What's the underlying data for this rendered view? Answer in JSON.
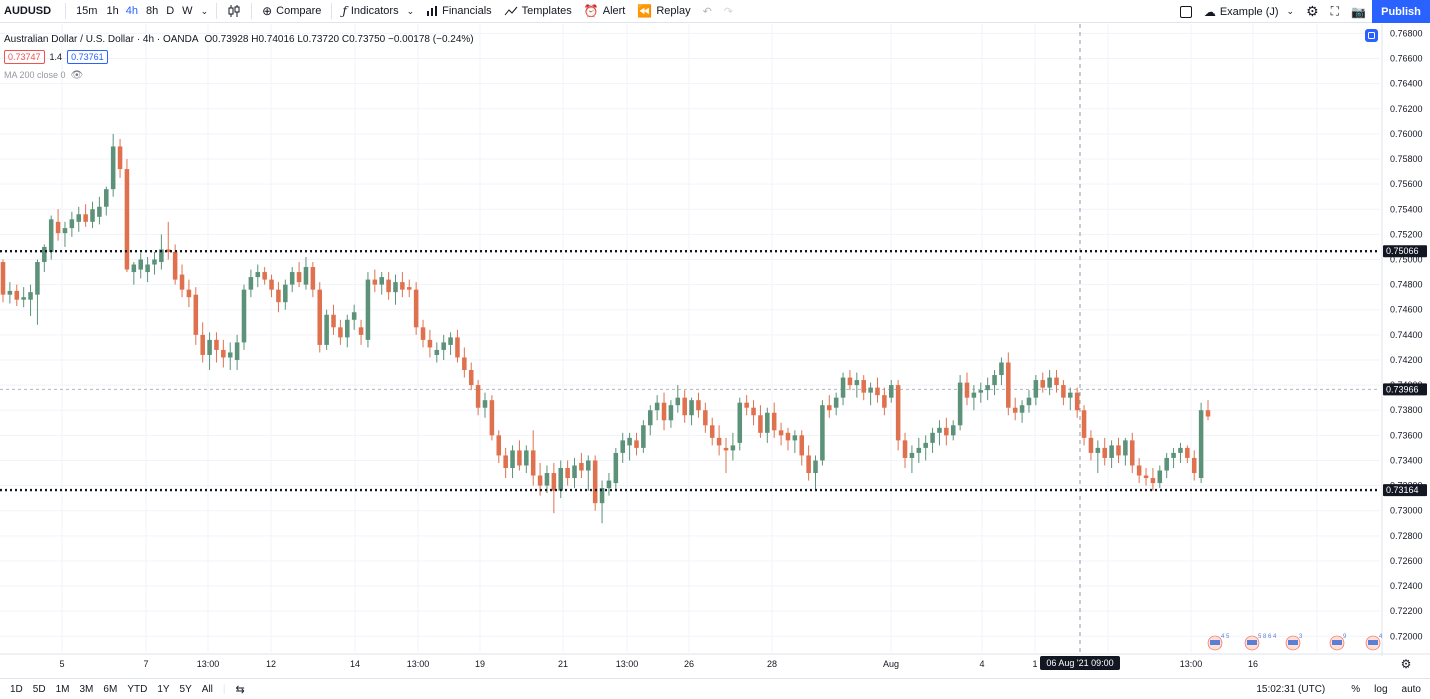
{
  "toolbar": {
    "symbol": "AUDUSD",
    "intervals": [
      "15m",
      "1h",
      "4h",
      "8h",
      "D",
      "W"
    ],
    "active_interval": "4h",
    "compare": "Compare",
    "indicators": "Indicators",
    "financials": "Financials",
    "templates": "Templates",
    "alert": "Alert",
    "replay": "Replay",
    "layout_name": "Example (J)",
    "publish": "Publish"
  },
  "legend": {
    "title": "Australian Dollar / U.S. Dollar · 4h · OANDA",
    "ohlc": "O0.73928 H0.74016 L0.73720 C0.73750 −0.00178 (−0.24%)",
    "bid": "0.73747",
    "spread": "1.4",
    "ask": "0.73761",
    "ma": "MA 200 close 0"
  },
  "colors": {
    "up": "#5b9279",
    "down": "#e0714e",
    "accent": "#2962ff"
  },
  "chart_data": {
    "type": "candlestick",
    "ylim": [
      0.71875,
      0.76875
    ],
    "y_ticks": [
      "0.76800",
      "0.76600",
      "0.76400",
      "0.76200",
      "0.76000",
      "0.75800",
      "0.75600",
      "0.75400",
      "0.75200",
      "0.75000",
      "0.74800",
      "0.74600",
      "0.74400",
      "0.74200",
      "0.74000",
      "0.73800",
      "0.73600",
      "0.73400",
      "0.73200",
      "0.73000",
      "0.72800",
      "0.72600",
      "0.72400",
      "0.72200",
      "0.72000"
    ],
    "x_ticks": [
      "5",
      "7",
      "13:00",
      "12",
      "14",
      "13:00",
      "19",
      "21",
      "13:00",
      "26",
      "28",
      "Aug",
      "4",
      "1",
      "11",
      "13:00",
      "16"
    ],
    "horizontal_lines": [
      {
        "label": "0.75066",
        "value": 0.75066,
        "style": "dotted"
      },
      {
        "label": "0.73164",
        "value": 0.73164,
        "style": "dotted"
      }
    ],
    "last_price_label": "0.73966",
    "last_price": 0.73966,
    "crosshair_label": "06 Aug '21   09:00",
    "candles": [
      [
        0.7498,
        0.75,
        0.7466,
        0.7472
      ],
      [
        0.7472,
        0.7482,
        0.7465,
        0.7475
      ],
      [
        0.7475,
        0.748,
        0.7463,
        0.7468
      ],
      [
        0.7468,
        0.7478,
        0.7462,
        0.747
      ],
      [
        0.7468,
        0.748,
        0.7455,
        0.7474
      ],
      [
        0.7472,
        0.75,
        0.7448,
        0.7498
      ],
      [
        0.7498,
        0.7512,
        0.749,
        0.751
      ],
      [
        0.7506,
        0.7535,
        0.75,
        0.7532
      ],
      [
        0.753,
        0.754,
        0.7515,
        0.7521
      ],
      [
        0.7521,
        0.753,
        0.751,
        0.7525
      ],
      [
        0.7525,
        0.7538,
        0.7518,
        0.7532
      ],
      [
        0.753,
        0.7542,
        0.7522,
        0.7536
      ],
      [
        0.7536,
        0.7544,
        0.7526,
        0.753
      ],
      [
        0.753,
        0.7546,
        0.7525,
        0.754
      ],
      [
        0.7534,
        0.755,
        0.7528,
        0.7542
      ],
      [
        0.7542,
        0.7558,
        0.7535,
        0.7556
      ],
      [
        0.7556,
        0.76,
        0.755,
        0.759
      ],
      [
        0.759,
        0.7596,
        0.7565,
        0.7572
      ],
      [
        0.7572,
        0.758,
        0.749,
        0.7492
      ],
      [
        0.749,
        0.7498,
        0.748,
        0.7496
      ],
      [
        0.7492,
        0.7505,
        0.7485,
        0.75
      ],
      [
        0.749,
        0.7502,
        0.7482,
        0.7496
      ],
      [
        0.7496,
        0.7506,
        0.7488,
        0.75
      ],
      [
        0.7498,
        0.752,
        0.7492,
        0.7508
      ],
      [
        0.7508,
        0.753,
        0.75,
        0.7506
      ],
      [
        0.7506,
        0.7512,
        0.748,
        0.7484
      ],
      [
        0.7488,
        0.7496,
        0.747,
        0.7476
      ],
      [
        0.7476,
        0.7484,
        0.7462,
        0.747
      ],
      [
        0.7472,
        0.7478,
        0.7432,
        0.744
      ],
      [
        0.744,
        0.745,
        0.7418,
        0.7424
      ],
      [
        0.7424,
        0.7442,
        0.7412,
        0.7436
      ],
      [
        0.7436,
        0.7442,
        0.7418,
        0.7428
      ],
      [
        0.7428,
        0.7436,
        0.7414,
        0.7422
      ],
      [
        0.7422,
        0.7434,
        0.7412,
        0.7426
      ],
      [
        0.742,
        0.744,
        0.7412,
        0.7434
      ],
      [
        0.7434,
        0.748,
        0.7428,
        0.7476
      ],
      [
        0.7476,
        0.7492,
        0.747,
        0.7486
      ],
      [
        0.7486,
        0.7496,
        0.7478,
        0.749
      ],
      [
        0.749,
        0.7494,
        0.748,
        0.7484
      ],
      [
        0.7484,
        0.7488,
        0.747,
        0.7476
      ],
      [
        0.7476,
        0.7482,
        0.7458,
        0.7466
      ],
      [
        0.7466,
        0.7484,
        0.746,
        0.748
      ],
      [
        0.748,
        0.7494,
        0.7474,
        0.749
      ],
      [
        0.749,
        0.7498,
        0.7478,
        0.7482
      ],
      [
        0.748,
        0.7502,
        0.7476,
        0.7494
      ],
      [
        0.7494,
        0.7498,
        0.747,
        0.7476
      ],
      [
        0.7476,
        0.7482,
        0.7426,
        0.7432
      ],
      [
        0.7432,
        0.746,
        0.7428,
        0.7456
      ],
      [
        0.7456,
        0.7464,
        0.744,
        0.7446
      ],
      [
        0.7446,
        0.7452,
        0.7432,
        0.7438
      ],
      [
        0.7438,
        0.7456,
        0.743,
        0.7452
      ],
      [
        0.7452,
        0.7464,
        0.7444,
        0.7458
      ],
      [
        0.7446,
        0.7452,
        0.7432,
        0.744
      ],
      [
        0.7436,
        0.749,
        0.743,
        0.7484
      ],
      [
        0.7484,
        0.7492,
        0.7474,
        0.748
      ],
      [
        0.748,
        0.749,
        0.7472,
        0.7486
      ],
      [
        0.7484,
        0.749,
        0.7468,
        0.7474
      ],
      [
        0.7474,
        0.7488,
        0.7464,
        0.7482
      ],
      [
        0.7482,
        0.749,
        0.747,
        0.7476
      ],
      [
        0.7478,
        0.7484,
        0.747,
        0.7476
      ],
      [
        0.7476,
        0.7482,
        0.744,
        0.7446
      ],
      [
        0.7446,
        0.7452,
        0.743,
        0.7436
      ],
      [
        0.7436,
        0.7444,
        0.7422,
        0.743
      ],
      [
        0.7424,
        0.7434,
        0.7418,
        0.7428
      ],
      [
        0.7428,
        0.744,
        0.742,
        0.7434
      ],
      [
        0.7432,
        0.7442,
        0.7424,
        0.7438
      ],
      [
        0.7438,
        0.7444,
        0.7418,
        0.7422
      ],
      [
        0.7422,
        0.743,
        0.7406,
        0.7412
      ],
      [
        0.7412,
        0.7418,
        0.7396,
        0.74
      ],
      [
        0.74,
        0.7404,
        0.7376,
        0.7382
      ],
      [
        0.7382,
        0.7394,
        0.7374,
        0.7388
      ],
      [
        0.7388,
        0.7392,
        0.7356,
        0.736
      ],
      [
        0.736,
        0.7364,
        0.7338,
        0.7344
      ],
      [
        0.7344,
        0.735,
        0.7326,
        0.7334
      ],
      [
        0.7334,
        0.7352,
        0.7326,
        0.7348
      ],
      [
        0.7348,
        0.7356,
        0.7332,
        0.7336
      ],
      [
        0.7336,
        0.7352,
        0.733,
        0.7348
      ],
      [
        0.7348,
        0.7364,
        0.732,
        0.7328
      ],
      [
        0.7328,
        0.7338,
        0.7312,
        0.732
      ],
      [
        0.732,
        0.7336,
        0.7314,
        0.733
      ],
      [
        0.733,
        0.7338,
        0.7298,
        0.7316
      ],
      [
        0.7316,
        0.734,
        0.731,
        0.7334
      ],
      [
        0.7334,
        0.734,
        0.732,
        0.7326
      ],
      [
        0.7326,
        0.7342,
        0.7318,
        0.7336
      ],
      [
        0.7338,
        0.7346,
        0.7326,
        0.7332
      ],
      [
        0.7332,
        0.7344,
        0.7316,
        0.734
      ],
      [
        0.734,
        0.7344,
        0.73,
        0.7306
      ],
      [
        0.7306,
        0.7324,
        0.729,
        0.7318
      ],
      [
        0.7318,
        0.733,
        0.7312,
        0.7324
      ],
      [
        0.7322,
        0.735,
        0.7316,
        0.7346
      ],
      [
        0.7346,
        0.7362,
        0.7338,
        0.7356
      ],
      [
        0.7352,
        0.7362,
        0.734,
        0.7358
      ],
      [
        0.7356,
        0.7362,
        0.7344,
        0.735
      ],
      [
        0.735,
        0.7372,
        0.7346,
        0.7368
      ],
      [
        0.7368,
        0.7384,
        0.736,
        0.738
      ],
      [
        0.738,
        0.7392,
        0.7372,
        0.7386
      ],
      [
        0.7386,
        0.7394,
        0.7364,
        0.7372
      ],
      [
        0.7372,
        0.7388,
        0.7366,
        0.7384
      ],
      [
        0.7384,
        0.74,
        0.7378,
        0.739
      ],
      [
        0.739,
        0.7396,
        0.737,
        0.7376
      ],
      [
        0.7376,
        0.739,
        0.7368,
        0.7388
      ],
      [
        0.7388,
        0.7394,
        0.7374,
        0.738
      ],
      [
        0.738,
        0.7386,
        0.7362,
        0.7368
      ],
      [
        0.7368,
        0.7374,
        0.7352,
        0.7358
      ],
      [
        0.7358,
        0.7368,
        0.7344,
        0.7352
      ],
      [
        0.735,
        0.7358,
        0.733,
        0.7348
      ],
      [
        0.7348,
        0.7362,
        0.734,
        0.7352
      ],
      [
        0.7354,
        0.739,
        0.7348,
        0.7386
      ],
      [
        0.7386,
        0.7392,
        0.7376,
        0.7382
      ],
      [
        0.7382,
        0.7388,
        0.7368,
        0.7376
      ],
      [
        0.7376,
        0.7384,
        0.7358,
        0.7362
      ],
      [
        0.7362,
        0.7382,
        0.7354,
        0.7378
      ],
      [
        0.7378,
        0.7386,
        0.7358,
        0.7364
      ],
      [
        0.7364,
        0.737,
        0.7352,
        0.736
      ],
      [
        0.7362,
        0.7366,
        0.7348,
        0.7356
      ],
      [
        0.7356,
        0.7364,
        0.7346,
        0.736
      ],
      [
        0.736,
        0.7364,
        0.7336,
        0.7344
      ],
      [
        0.7344,
        0.7352,
        0.7324,
        0.733
      ],
      [
        0.733,
        0.7344,
        0.7316,
        0.734
      ],
      [
        0.734,
        0.7388,
        0.7336,
        0.7384
      ],
      [
        0.7384,
        0.7392,
        0.7374,
        0.738
      ],
      [
        0.7382,
        0.7394,
        0.7376,
        0.739
      ],
      [
        0.739,
        0.741,
        0.7384,
        0.7406
      ],
      [
        0.7406,
        0.7412,
        0.7396,
        0.74
      ],
      [
        0.74,
        0.741,
        0.739,
        0.7404
      ],
      [
        0.7404,
        0.7408,
        0.7388,
        0.7394
      ],
      [
        0.7394,
        0.7402,
        0.7384,
        0.7398
      ],
      [
        0.7398,
        0.7406,
        0.7386,
        0.7392
      ],
      [
        0.7392,
        0.7398,
        0.7376,
        0.7382
      ],
      [
        0.739,
        0.7404,
        0.7386,
        0.74
      ],
      [
        0.74,
        0.7404,
        0.7348,
        0.7356
      ],
      [
        0.7356,
        0.7362,
        0.7334,
        0.7342
      ],
      [
        0.7342,
        0.7352,
        0.733,
        0.7346
      ],
      [
        0.7346,
        0.7358,
        0.7338,
        0.735
      ],
      [
        0.735,
        0.736,
        0.734,
        0.7354
      ],
      [
        0.7354,
        0.7366,
        0.7346,
        0.7362
      ],
      [
        0.7362,
        0.7372,
        0.7352,
        0.7366
      ],
      [
        0.7366,
        0.7374,
        0.7352,
        0.736
      ],
      [
        0.736,
        0.7372,
        0.7356,
        0.7368
      ],
      [
        0.7368,
        0.7408,
        0.7364,
        0.7402
      ],
      [
        0.7402,
        0.741,
        0.7384,
        0.739
      ],
      [
        0.739,
        0.74,
        0.738,
        0.7394
      ],
      [
        0.7394,
        0.7402,
        0.7386,
        0.7396
      ],
      [
        0.7396,
        0.7406,
        0.7388,
        0.74
      ],
      [
        0.74,
        0.7412,
        0.7392,
        0.7408
      ],
      [
        0.7408,
        0.7422,
        0.74,
        0.7418
      ],
      [
        0.7418,
        0.7426,
        0.7376,
        0.7382
      ],
      [
        0.7382,
        0.739,
        0.7372,
        0.7378
      ],
      [
        0.7378,
        0.7388,
        0.737,
        0.7384
      ],
      [
        0.7384,
        0.7396,
        0.7378,
        0.739
      ],
      [
        0.739,
        0.7408,
        0.7384,
        0.7404
      ],
      [
        0.7404,
        0.741,
        0.7394,
        0.7398
      ],
      [
        0.7398,
        0.7412,
        0.7392,
        0.7406
      ],
      [
        0.7406,
        0.7412,
        0.7394,
        0.74
      ],
      [
        0.74,
        0.7404,
        0.7384,
        0.739
      ],
      [
        0.739,
        0.7398,
        0.738,
        0.7394
      ],
      [
        0.7394,
        0.7398,
        0.7374,
        0.738
      ],
      [
        0.738,
        0.7384,
        0.7352,
        0.7358
      ],
      [
        0.7358,
        0.7364,
        0.734,
        0.7346
      ],
      [
        0.7346,
        0.7356,
        0.733,
        0.735
      ],
      [
        0.735,
        0.7358,
        0.7336,
        0.7342
      ],
      [
        0.7342,
        0.7356,
        0.7334,
        0.7352
      ],
      [
        0.7352,
        0.7358,
        0.7338,
        0.7344
      ],
      [
        0.7344,
        0.7358,
        0.7336,
        0.7356
      ],
      [
        0.7356,
        0.7362,
        0.733,
        0.7336
      ],
      [
        0.7336,
        0.7342,
        0.7322,
        0.7328
      ],
      [
        0.7328,
        0.7334,
        0.732,
        0.7326
      ],
      [
        0.7326,
        0.7334,
        0.7316,
        0.7322
      ],
      [
        0.7322,
        0.7336,
        0.7318,
        0.7332
      ],
      [
        0.7332,
        0.7346,
        0.7326,
        0.7342
      ],
      [
        0.7342,
        0.735,
        0.7334,
        0.7346
      ],
      [
        0.7346,
        0.7354,
        0.7338,
        0.735
      ],
      [
        0.735,
        0.7352,
        0.7338,
        0.7342
      ],
      [
        0.7342,
        0.7348,
        0.7324,
        0.733
      ],
      [
        0.7326,
        0.7386,
        0.7322,
        0.738
      ],
      [
        0.738,
        0.7388,
        0.7372,
        0.7375
      ]
    ]
  },
  "events": [
    "4 5",
    "5 8 6 4",
    "3",
    "9",
    "4"
  ],
  "bottombar": {
    "ranges": [
      "1D",
      "5D",
      "1M",
      "3M",
      "6M",
      "YTD",
      "1Y",
      "5Y",
      "All"
    ],
    "time": "15:02:31 (UTC)",
    "percent": "%",
    "log": "log",
    "auto": "auto"
  }
}
